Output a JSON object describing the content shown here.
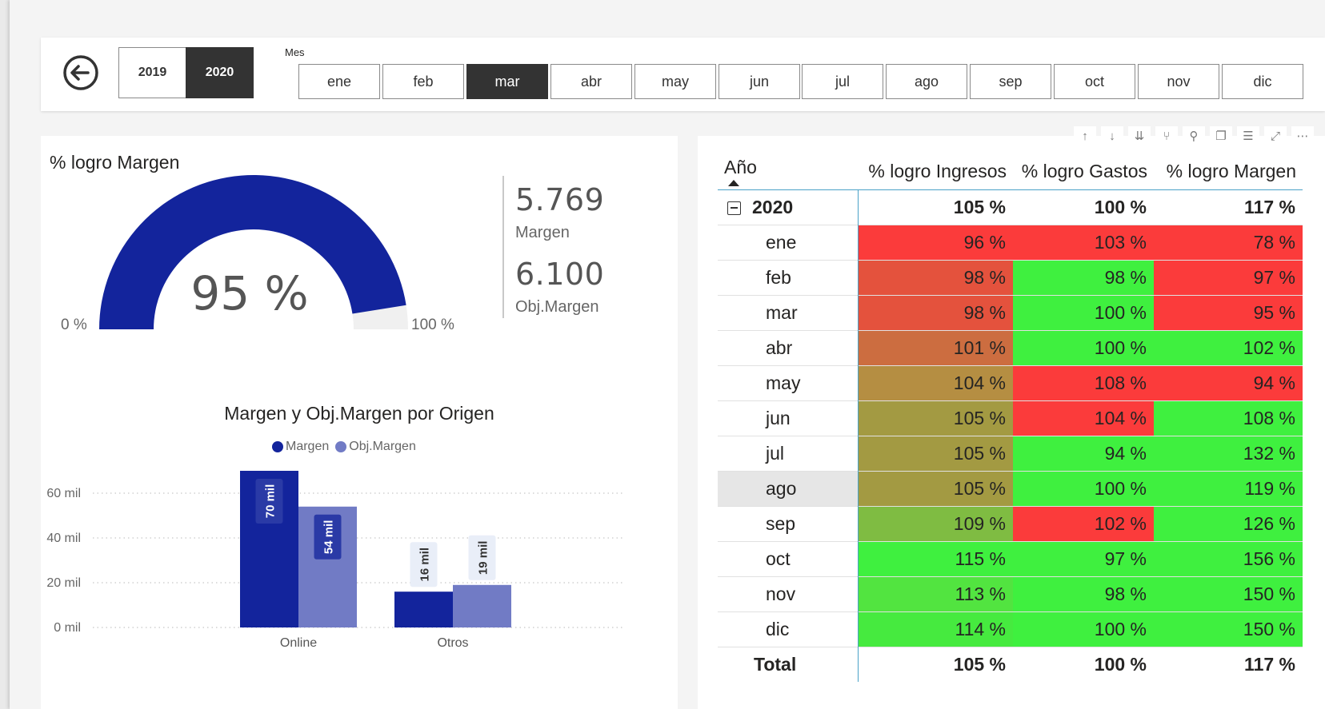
{
  "slicers": {
    "years": [
      {
        "label": "2019",
        "selected": false
      },
      {
        "label": "2020",
        "selected": true
      }
    ],
    "month_label": "Mes",
    "months": [
      {
        "label": "ene",
        "selected": false
      },
      {
        "label": "feb",
        "selected": false
      },
      {
        "label": "mar",
        "selected": true
      },
      {
        "label": "abr",
        "selected": false
      },
      {
        "label": "may",
        "selected": false
      },
      {
        "label": "jun",
        "selected": false
      },
      {
        "label": "jul",
        "selected": false
      },
      {
        "label": "ago",
        "selected": false
      },
      {
        "label": "sep",
        "selected": false
      },
      {
        "label": "oct",
        "selected": false
      },
      {
        "label": "nov",
        "selected": false
      },
      {
        "label": "dic",
        "selected": false
      }
    ]
  },
  "gauge": {
    "title": "% logro Margen",
    "value_label": "95 %",
    "value": 95,
    "min_label": "0 %",
    "max_label": "100 %",
    "min": 0,
    "max": 100,
    "fill_color": "#13249c",
    "track_color": "#f0f0f0"
  },
  "kpi": {
    "margen_value": "5.769",
    "margen_label": "Margen",
    "obj_value": "6.100",
    "obj_label": "Obj.Margen"
  },
  "chart_data": {
    "type": "bar",
    "title": "Margen y Obj.Margen por Origen",
    "categories": [
      "Online",
      "Otros"
    ],
    "series": [
      {
        "name": "Margen",
        "values": [
          70,
          16
        ],
        "labels": [
          "70 mil",
          "16 mil"
        ],
        "color": "#13249c"
      },
      {
        "name": "Obj.Margen",
        "values": [
          54,
          19
        ],
        "labels": [
          "54 mil",
          "19 mil"
        ],
        "color": "#717bc5"
      }
    ],
    "yticks": [
      {
        "value": 0,
        "label": "0 mil"
      },
      {
        "value": 20,
        "label": "20 mil"
      },
      {
        "value": 40,
        "label": "40 mil"
      },
      {
        "value": 60,
        "label": "60 mil"
      }
    ],
    "ylim": [
      0,
      70
    ],
    "grid": true,
    "legend": "top-center"
  },
  "matrix": {
    "headers": {
      "ano": "Año",
      "ingresos": "% logro Ingresos",
      "gastos": "% logro Gastos",
      "margen": "% logro Margen"
    },
    "year_row": {
      "label": "2020",
      "ingresos": "105 %",
      "gastos": "100 %",
      "margen": "117 %"
    },
    "rows": [
      {
        "label": "ene",
        "ingresos": "96 %",
        "gastos": "103 %",
        "margen": "78 %",
        "c_ing": "#fb3b3b",
        "c_gas": "#fb3b3b",
        "c_mar": "#fb3b3b"
      },
      {
        "label": "feb",
        "ingresos": "98 %",
        "gastos": "98 %",
        "margen": "97 %",
        "c_ing": "#e4523d",
        "c_gas": "#3ff03f",
        "c_mar": "#fb3b3b"
      },
      {
        "label": "mar",
        "ingresos": "98 %",
        "gastos": "100 %",
        "margen": "95 %",
        "c_ing": "#e4523d",
        "c_gas": "#3ff03f",
        "c_mar": "#fb3b3b"
      },
      {
        "label": "abr",
        "ingresos": "101 %",
        "gastos": "100 %",
        "margen": "102 %",
        "c_ing": "#cc6d40",
        "c_gas": "#3ff03f",
        "c_mar": "#3ff03f"
      },
      {
        "label": "may",
        "ingresos": "104 %",
        "gastos": "108 %",
        "margen": "94 %",
        "c_ing": "#b58e42",
        "c_gas": "#fb3b3b",
        "c_mar": "#fb3b3b"
      },
      {
        "label": "jun",
        "ingresos": "105 %",
        "gastos": "104 %",
        "margen": "108 %",
        "c_ing": "#a39a42",
        "c_gas": "#fb3b3b",
        "c_mar": "#3ff03f"
      },
      {
        "label": "jul",
        "ingresos": "105 %",
        "gastos": "94 %",
        "margen": "132 %",
        "c_ing": "#a39a42",
        "c_gas": "#3ff03f",
        "c_mar": "#3ff03f"
      },
      {
        "label": "ago",
        "ingresos": "105 %",
        "gastos": "100 %",
        "margen": "119 %",
        "c_ing": "#a39a42",
        "c_gas": "#3ff03f",
        "c_mar": "#3ff03f"
      },
      {
        "label": "sep",
        "ingresos": "109 %",
        "gastos": "102 %",
        "margen": "126 %",
        "c_ing": "#7fbc42",
        "c_gas": "#fb3b3b",
        "c_mar": "#3ff03f"
      },
      {
        "label": "oct",
        "ingresos": "115 %",
        "gastos": "97 %",
        "margen": "156 %",
        "c_ing": "#3ff03f",
        "c_gas": "#3ff03f",
        "c_mar": "#3ff03f"
      },
      {
        "label": "nov",
        "ingresos": "113 %",
        "gastos": "98 %",
        "margen": "150 %",
        "c_ing": "#52e440",
        "c_gas": "#3ff03f",
        "c_mar": "#3ff03f"
      },
      {
        "label": "dic",
        "ingresos": "114 %",
        "gastos": "100 %",
        "margen": "150 %",
        "c_ing": "#46ea3f",
        "c_gas": "#3ff03f",
        "c_mar": "#3ff03f"
      }
    ],
    "total_row": {
      "label": "Total",
      "ingresos": "105 %",
      "gastos": "100 %",
      "margen": "117 %"
    }
  },
  "toolbar_icons": [
    "sort-up-icon",
    "sort-down-icon",
    "expand-all-icon",
    "drill-icon",
    "pin-icon",
    "copy-icon",
    "filter-icon",
    "focus-icon",
    "more-icon"
  ]
}
